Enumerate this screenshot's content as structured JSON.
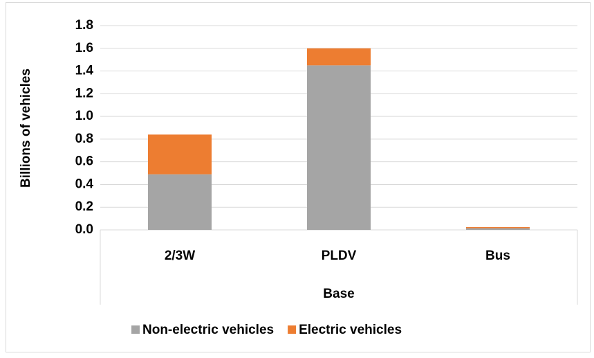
{
  "chart_data": {
    "type": "stacked_bar",
    "y_label": "Billions of vehicles",
    "x_group_label": "Base",
    "categories": [
      "2/3W",
      "PLDV",
      "Bus"
    ],
    "series": [
      {
        "name": "Non-electric vehicles",
        "color": "#a5a5a5",
        "values": [
          0.49,
          1.45,
          0.015
        ]
      },
      {
        "name": "Electric vehicles",
        "color": "#ed7d31",
        "values": [
          0.35,
          0.15,
          0.01
        ]
      }
    ],
    "ylim": [
      0,
      1.8
    ],
    "yticks": [
      {
        "value": 0,
        "label": "0.0"
      },
      0.2,
      0.4,
      0.6,
      0.8,
      {
        "value": 1,
        "label": "1.0"
      },
      1.2,
      1.4,
      1.6,
      1.8
    ],
    "grid": true,
    "legend": "bottom"
  }
}
